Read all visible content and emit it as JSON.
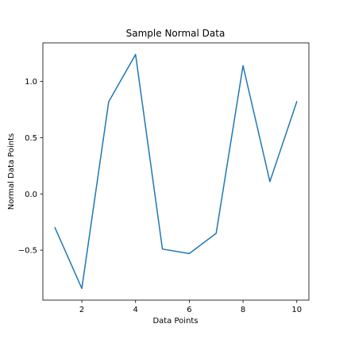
{
  "chart_data": {
    "type": "line",
    "title": "Sample Normal Data",
    "xlabel": "Data Points",
    "ylabel": "Normal Data Points",
    "x": [
      1,
      2,
      3,
      4,
      5,
      6,
      7,
      8,
      9,
      10
    ],
    "series": [
      {
        "values": [
          -0.3,
          -0.84,
          0.82,
          1.24,
          -0.49,
          -0.53,
          -0.35,
          1.14,
          0.11,
          0.82
        ]
      }
    ],
    "xlim": [
      0.55,
      10.45
    ],
    "ylim": [
      -0.944,
      1.343
    ],
    "xticks": [
      2,
      4,
      6,
      8,
      10
    ],
    "yticks": [
      -0.5,
      0.0,
      0.5,
      1.0
    ],
    "xtick_labels": [
      "2",
      "4",
      "6",
      "8",
      "10"
    ],
    "ytick_labels": [
      "−0.5",
      "0.0",
      "0.5",
      "1.0"
    ],
    "grid": false,
    "line_color": "#1f77b4"
  }
}
